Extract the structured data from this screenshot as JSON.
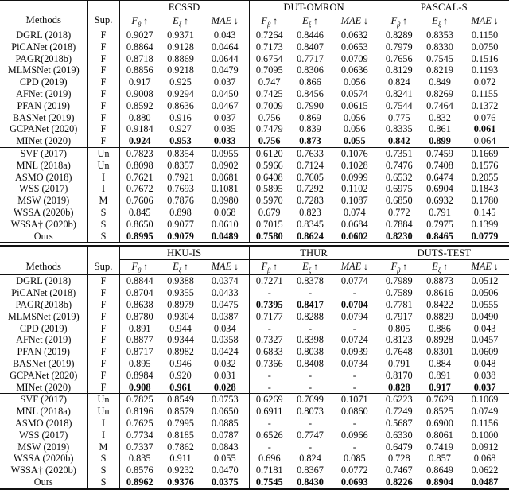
{
  "colors": {
    "background": "#ffffff",
    "text": "#0a0a0a",
    "rule": "#111111"
  },
  "header_labels": {
    "methods": "Methods",
    "sup": "Sup."
  },
  "metrics": [
    {
      "base": "F",
      "sub": "β",
      "arrow": "↑"
    },
    {
      "base": "E",
      "sub": "ξ",
      "arrow": "↑"
    },
    {
      "base": "MAE",
      "sub": "",
      "arrow": "↓"
    }
  ],
  "tables": [
    {
      "datasets": [
        "ECSSD",
        "DUT-OMRON",
        "PASCAL-S"
      ],
      "fully_supervised_rows": [
        {
          "method": "DGRL (2018)",
          "sup": "F",
          "values": [
            "0.9027",
            "0.9371",
            "0.043",
            "0.7264",
            "0.8446",
            "0.0632",
            "0.8289",
            "0.8353",
            "0.1150"
          ],
          "bold": []
        },
        {
          "method": "PiCANet (2018)",
          "sup": "F",
          "values": [
            "0.8864",
            "0.9128",
            "0.0464",
            "0.7173",
            "0.8407",
            "0.0653",
            "0.7979",
            "0.8330",
            "0.0750"
          ],
          "bold": []
        },
        {
          "method": "PAGR(2018b)",
          "sup": "F",
          "values": [
            "0.8718",
            "0.8869",
            "0.0644",
            "0.6754",
            "0.7717",
            "0.0709",
            "0.7656",
            "0.7545",
            "0.1516"
          ],
          "bold": []
        },
        {
          "method": "MLMSNet (2019)",
          "sup": "F",
          "values": [
            "0.8856",
            "0.9218",
            "0.0479",
            "0.7095",
            "0.8306",
            "0.0636",
            "0.8129",
            "0.8219",
            "0.1193"
          ],
          "bold": []
        },
        {
          "method": "CPD (2019)",
          "sup": "F",
          "values": [
            "0.917",
            "0.925",
            "0.037",
            "0.747",
            "0.866",
            "0.056",
            "0.824",
            "0.849",
            "0.072"
          ],
          "bold": []
        },
        {
          "method": "AFNet (2019)",
          "sup": "F",
          "values": [
            "0.9008",
            "0.9294",
            "0.0450",
            "0.7425",
            "0.8456",
            "0.0574",
            "0.8241",
            "0.8269",
            "0.1155"
          ],
          "bold": []
        },
        {
          "method": "PFAN (2019)",
          "sup": "F",
          "values": [
            "0.8592",
            "0.8636",
            "0.0467",
            "0.7009",
            "0.7990",
            "0.0615",
            "0.7544",
            "0.7464",
            "0.1372"
          ],
          "bold": []
        },
        {
          "method": "BASNet (2019)",
          "sup": "F",
          "values": [
            "0.880",
            "0.916",
            "0.037",
            "0.756",
            "0.869",
            "0.056",
            "0.775",
            "0.832",
            "0.076"
          ],
          "bold": []
        },
        {
          "method": "GCPANet (2020)",
          "sup": "F",
          "values": [
            "0.9184",
            "0.927",
            "0.035",
            "0.7479",
            "0.839",
            "0.056",
            "0.8335",
            "0.861",
            "0.061"
          ],
          "bold": [
            8
          ]
        },
        {
          "method": "MINet (2020)",
          "sup": "F",
          "values": [
            "0.924",
            "0.953",
            "0.033",
            "0.756",
            "0.873",
            "0.055",
            "0.842",
            "0.899",
            "0.064"
          ],
          "bold": [
            0,
            1,
            2,
            3,
            4,
            5,
            6,
            7
          ]
        }
      ],
      "weakly_supervised_rows": [
        {
          "method": "SVF (2017)",
          "sup": "Un",
          "values": [
            "0.7823",
            "0.8354",
            "0.0955",
            "0.6120",
            "0.7633",
            "0.1076",
            "0.7351",
            "0.7459",
            "0.1669"
          ],
          "bold": []
        },
        {
          "method": "MNL (2018a)",
          "sup": "Un",
          "values": [
            "0.8098",
            "0.8357",
            "0.0902",
            "0.5966",
            "0.7124",
            "0.1028",
            "0.7476",
            "0.7408",
            "0.1576"
          ],
          "bold": []
        },
        {
          "method": "ASMO (2018)",
          "sup": "I",
          "values": [
            "0.7621",
            "0.7921",
            "0.0681",
            "0.6408",
            "0.7605",
            "0.0999",
            "0.6532",
            "0.6474",
            "0.2055"
          ],
          "bold": []
        },
        {
          "method": "WSS (2017)",
          "sup": "I",
          "values": [
            "0.7672",
            "0.7693",
            "0.1081",
            "0.5895",
            "0.7292",
            "0.1102",
            "0.6975",
            "0.6904",
            "0.1843"
          ],
          "bold": []
        },
        {
          "method": "MSW (2019)",
          "sup": "M",
          "values": [
            "0.7606",
            "0.7876",
            "0.0980",
            "0.5970",
            "0.7283",
            "0.1087",
            "0.6850",
            "0.6932",
            "0.1780"
          ],
          "bold": []
        },
        {
          "method": "WSSA (2020b)",
          "sup": "S",
          "values": [
            "0.845",
            "0.898",
            "0.068",
            "0.679",
            "0.823",
            "0.074",
            "0.772",
            "0.791",
            "0.145"
          ],
          "bold": []
        },
        {
          "method": "WSSA† (2020b)",
          "sup": "S",
          "values": [
            "0.8650",
            "0.9077",
            "0.0610",
            "0.7015",
            "0.8345",
            "0.0684",
            "0.7884",
            "0.7975",
            "0.1399"
          ],
          "bold": []
        },
        {
          "method": "Ours",
          "sup": "S",
          "values": [
            "0.8995",
            "0.9079",
            "0.0489",
            "0.7580",
            "0.8624",
            "0.0602",
            "0.8230",
            "0.8465",
            "0.0779"
          ],
          "bold": [
            0,
            1,
            2,
            3,
            4,
            5,
            6,
            7,
            8
          ]
        }
      ]
    },
    {
      "datasets": [
        "HKU-IS",
        "THUR",
        "DUTS-TEST"
      ],
      "fully_supervised_rows": [
        {
          "method": "DGRL (2018)",
          "sup": "F",
          "values": [
            "0.8844",
            "0.9388",
            "0.0374",
            "0.7271",
            "0.8378",
            "0.0774",
            "0.7989",
            "0.8873",
            "0.0512"
          ],
          "bold": []
        },
        {
          "method": "PiCANet (2018)",
          "sup": "F",
          "values": [
            "0.8704",
            "0.9355",
            "0.0433",
            "-",
            "-",
            "-",
            "0.7589",
            "0.8616",
            "0.0506"
          ],
          "bold": []
        },
        {
          "method": "PAGR(2018b)",
          "sup": "F",
          "values": [
            "0.8638",
            "0.8979",
            "0.0475",
            "0.7395",
            "0.8417",
            "0.0704",
            "0.7781",
            "0.8422",
            "0.0555"
          ],
          "bold": [
            3,
            4,
            5
          ]
        },
        {
          "method": "MLMSNet (2019)",
          "sup": "F",
          "values": [
            "0.8780",
            "0.9304",
            "0.0387",
            "0.7177",
            "0.8288",
            "0.0794",
            "0.7917",
            "0.8829",
            "0.0490"
          ],
          "bold": []
        },
        {
          "method": "CPD (2019)",
          "sup": "F",
          "values": [
            "0.891",
            "0.944",
            "0.034",
            "-",
            "-",
            "-",
            "0.805",
            "0.886",
            "0.043"
          ],
          "bold": []
        },
        {
          "method": "AFNet (2019)",
          "sup": "F",
          "values": [
            "0.8877",
            "0.9344",
            "0.0358",
            "0.7327",
            "0.8398",
            "0.0724",
            "0.8123",
            "0.8928",
            "0.0457"
          ],
          "bold": []
        },
        {
          "method": "PFAN (2019)",
          "sup": "F",
          "values": [
            "0.8717",
            "0.8982",
            "0.0424",
            "0.6833",
            "0.8038",
            "0.0939",
            "0.7648",
            "0.8301",
            "0.0609"
          ],
          "bold": []
        },
        {
          "method": "BASNet (2019)",
          "sup": "F",
          "values": [
            "0.895",
            "0.946",
            "0.032",
            "0.7366",
            "0.8408",
            "0.0734",
            "0.791",
            "0.884",
            "0.048"
          ],
          "bold": []
        },
        {
          "method": "GCPANet (2020)",
          "sup": "F",
          "values": [
            "0.8984",
            "0.920",
            "0.031",
            "-",
            "-",
            "-",
            "0.8170",
            "0.891",
            "0.038"
          ],
          "bold": []
        },
        {
          "method": "MINet (2020)",
          "sup": "F",
          "values": [
            "0.908",
            "0.961",
            "0.028",
            "-",
            "-",
            "-",
            "0.828",
            "0.917",
            "0.037"
          ],
          "bold": [
            0,
            1,
            2,
            6,
            7,
            8
          ]
        }
      ],
      "weakly_supervised_rows": [
        {
          "method": "SVF (2017)",
          "sup": "Un",
          "values": [
            "0.7825",
            "0.8549",
            "0.0753",
            "0.6269",
            "0.7699",
            "0.1071",
            "0.6223",
            "0.7629",
            "0.1069"
          ],
          "bold": []
        },
        {
          "method": "MNL (2018a)",
          "sup": "Un",
          "values": [
            "0.8196",
            "0.8579",
            "0.0650",
            "0.6911",
            "0.8073",
            "0.0860",
            "0.7249",
            "0.8525",
            "0.0749"
          ],
          "bold": []
        },
        {
          "method": "ASMO (2018)",
          "sup": "I",
          "values": [
            "0.7625",
            "0.7995",
            "0.0885",
            "-",
            "-",
            "-",
            "0.5687",
            "0.6900",
            "0.1156"
          ],
          "bold": []
        },
        {
          "method": "WSS (2017)",
          "sup": "I",
          "values": [
            "0.7734",
            "0.8185",
            "0.0787",
            "0.6526",
            "0.7747",
            "0.0966",
            "0.6330",
            "0.8061",
            "0.1000"
          ],
          "bold": []
        },
        {
          "method": "MSW (2019)",
          "sup": "M",
          "values": [
            "0.7337",
            "0.7862",
            "0.0843",
            "-",
            "-",
            "-",
            "0.6479",
            "0.7419",
            "0.0912"
          ],
          "bold": []
        },
        {
          "method": "WSSA (2020b)",
          "sup": "S",
          "values": [
            "0.835",
            "0.911",
            "0.055",
            "0.696",
            "0.824",
            "0.085",
            "0.728",
            "0.857",
            "0.068"
          ],
          "bold": []
        },
        {
          "method": "WSSA† (2020b)",
          "sup": "S",
          "values": [
            "0.8576",
            "0.9232",
            "0.0470",
            "0.7181",
            "0.8367",
            "0.0772",
            "0.7467",
            "0.8649",
            "0.0622"
          ],
          "bold": []
        },
        {
          "method": "Ours",
          "sup": "S",
          "values": [
            "0.8962",
            "0.9376",
            "0.0375",
            "0.7545",
            "0.8430",
            "0.0693",
            "0.8226",
            "0.8904",
            "0.0487"
          ],
          "bold": [
            0,
            1,
            2,
            3,
            4,
            5,
            6,
            7,
            8
          ]
        }
      ]
    }
  ]
}
